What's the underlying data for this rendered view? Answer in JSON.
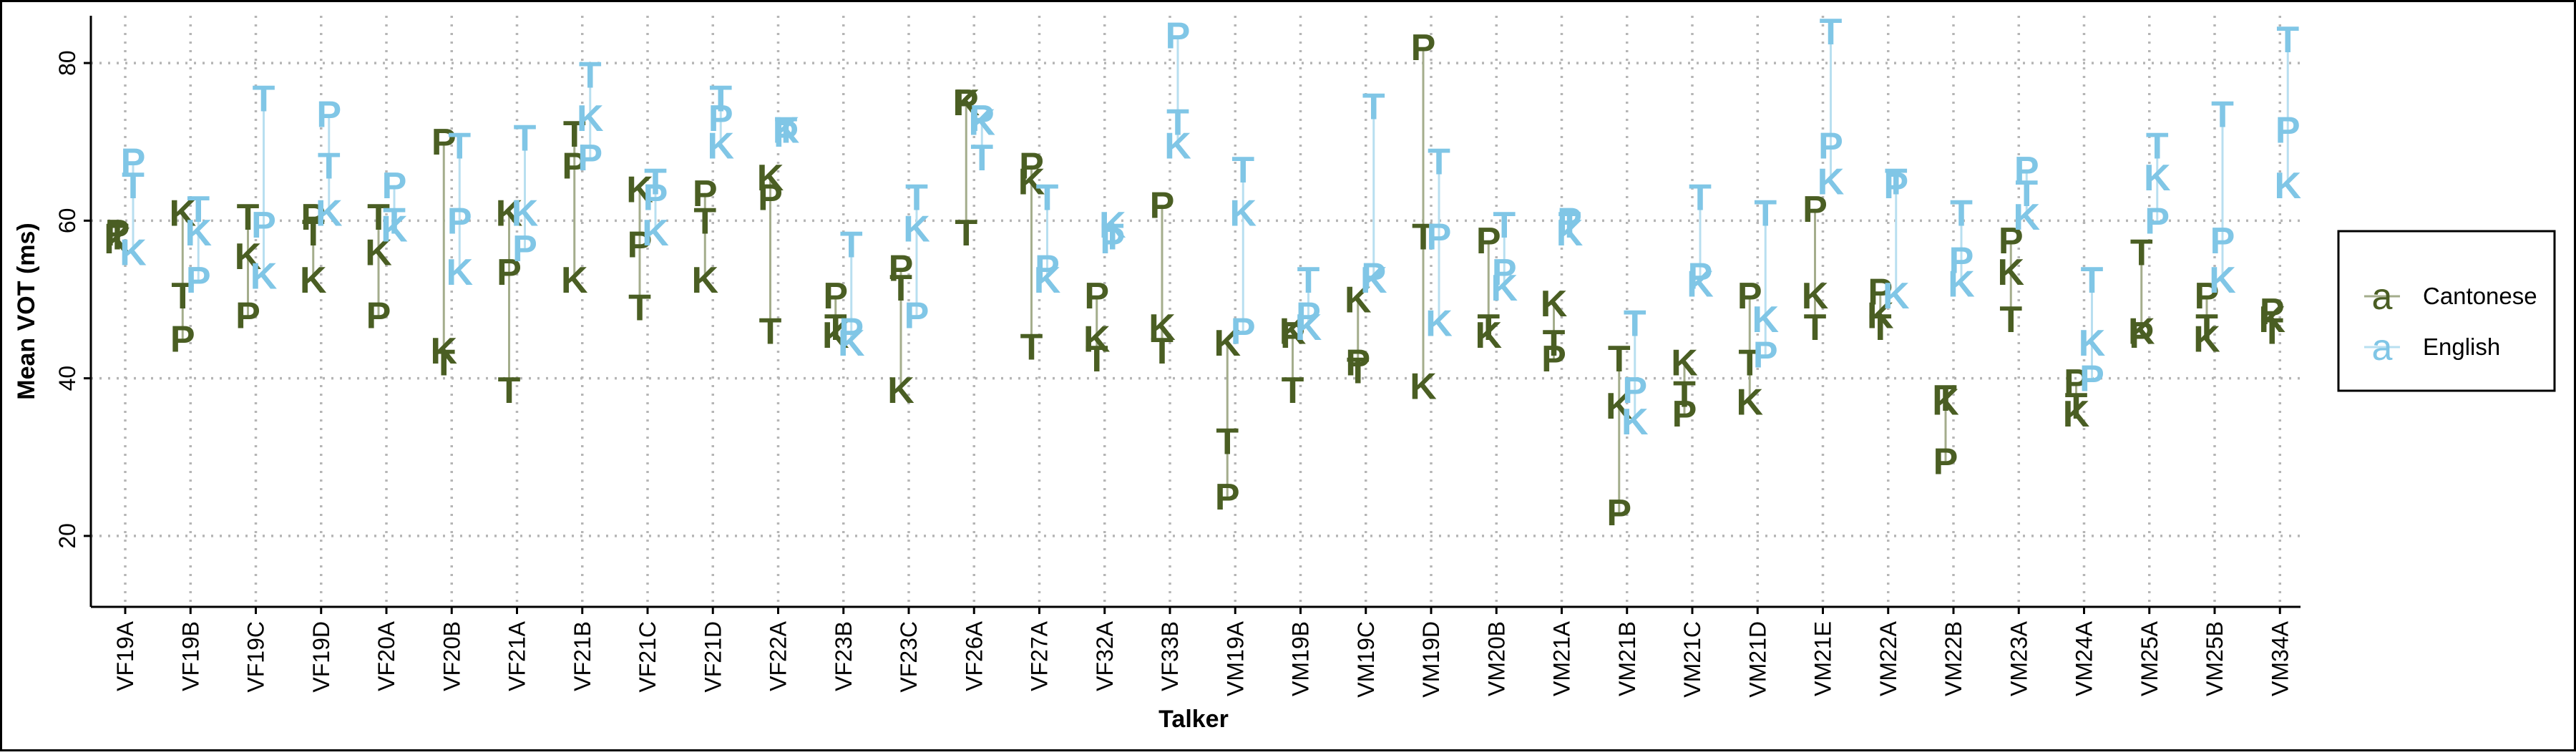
{
  "chart_data": {
    "type": "scatter",
    "xlabel": "Talker",
    "ylabel": "Mean VOT (ms)",
    "ylim": [
      11,
      86
    ],
    "yticks": [
      20,
      40,
      60,
      80
    ],
    "grid": true,
    "legend_position": "right",
    "legend_key_glyph": "a",
    "categories": [
      "VF19A",
      "VF19B",
      "VF19C",
      "VF19D",
      "VF20A",
      "VF20B",
      "VF21A",
      "VF21B",
      "VF21C",
      "VF21D",
      "VF22A",
      "VF23B",
      "VF23C",
      "VF26A",
      "VF27A",
      "VF32A",
      "VF33B",
      "VM19A",
      "VM19B",
      "VM19C",
      "VM19D",
      "VM20B",
      "VM21A",
      "VM21B",
      "VM21C",
      "VM21D",
      "VM21E",
      "VM22A",
      "VM22B",
      "VM23A",
      "VM24A",
      "VM25A",
      "VM25B",
      "VM34A"
    ],
    "series": [
      {
        "name": "Cantonese",
        "color": "#4a5e23",
        "line_color": "#a4ad8c",
        "points": [
          {
            "P": 58.5,
            "T": 58,
            "K": 57.5
          },
          {
            "P": 45,
            "T": 50.5,
            "K": 61
          },
          {
            "P": 48,
            "T": 60.5,
            "K": 55.5
          },
          {
            "P": 60.5,
            "T": 58.5,
            "K": 52.5
          },
          {
            "P": 48,
            "T": 60.5,
            "K": 56
          },
          {
            "P": 70,
            "T": 42,
            "K": 43.5
          },
          {
            "P": 53.5,
            "T": 38.5,
            "K": 61
          },
          {
            "P": 67,
            "T": 71,
            "K": 52.5
          },
          {
            "P": 57,
            "T": 49,
            "K": 64
          },
          {
            "P": 63.5,
            "T": 60,
            "K": 52.5
          },
          {
            "P": 63,
            "T": 46,
            "K": 65.5
          },
          {
            "P": 50.5,
            "T": 46.5,
            "K": 45.5
          },
          {
            "P": 54,
            "T": 51.5,
            "K": 38.5
          },
          {
            "P": 75,
            "T": 58.5,
            "K": 75
          },
          {
            "P": 67,
            "T": 44,
            "K": 65
          },
          {
            "P": 50.5,
            "T": 42.5,
            "K": 45
          },
          {
            "P": 62,
            "T": 43.5,
            "K": 46.5
          },
          {
            "P": 25,
            "T": 32,
            "K": 44.5
          },
          {
            "P": 45.5,
            "T": 38.5,
            "K": 46
          },
          {
            "P": 42,
            "T": 41,
            "K": 50
          },
          {
            "P": 82,
            "T": 58,
            "K": 39
          },
          {
            "P": 57.5,
            "T": 46.5,
            "K": 45.5
          },
          {
            "P": 42.5,
            "T": 44.5,
            "K": 49.5
          },
          {
            "P": 23,
            "T": 42.5,
            "K": 36.5
          },
          {
            "P": 35.5,
            "T": 38,
            "K": 42
          },
          {
            "P": 50.5,
            "T": 42,
            "K": 37
          },
          {
            "P": 61.5,
            "T": 46.5,
            "K": 50.5
          },
          {
            "P": 51,
            "T": 46.5,
            "K": 48
          },
          {
            "P": 29.5,
            "T": 37.5,
            "K": 37
          },
          {
            "P": 57.5,
            "T": 47.5,
            "K": 53.5
          },
          {
            "P": 39.5,
            "T": 36.5,
            "K": 35.5
          },
          {
            "P": 45.5,
            "T": 56,
            "K": 46
          },
          {
            "P": 50.5,
            "T": 46.5,
            "K": 45
          },
          {
            "P": 48.5,
            "T": 46,
            "K": 47.5
          }
        ]
      },
      {
        "name": "English",
        "color": "#80c6e6",
        "line_color": "#b8dff0",
        "points": [
          {
            "P": 67.5,
            "T": 64.5,
            "K": 56
          },
          {
            "P": 52.5,
            "T": 61.5,
            "K": 58.5
          },
          {
            "P": 59.5,
            "T": 75.5,
            "K": 53
          },
          {
            "P": 73.5,
            "T": 67,
            "K": 61
          },
          {
            "P": 64.5,
            "T": 60,
            "K": 59
          },
          {
            "P": 60,
            "T": 69.5,
            "K": 53.5
          },
          {
            "P": 56.5,
            "T": 70.5,
            "K": 61
          },
          {
            "P": 68,
            "T": 78.5,
            "K": 73
          },
          {
            "P": 63,
            "T": 65,
            "K": 58.5
          },
          {
            "P": 73,
            "T": 75.5,
            "K": 69.5
          },
          {
            "P": 71,
            "T": 71.5,
            "K": 71.5
          },
          {
            "P": 46,
            "T": 57,
            "K": 44.5
          },
          {
            "P": 48,
            "T": 63,
            "K": 59
          },
          {
            "P": 73,
            "T": 68,
            "K": 72.5
          },
          {
            "P": 54,
            "T": 63,
            "K": 52.5
          },
          {
            "P": 57.5,
            "T": 58,
            "K": 59.5
          },
          {
            "P": 83.5,
            "T": 72.5,
            "K": 69.5
          },
          {
            "P": 46,
            "T": 66.5,
            "K": 61
          },
          {
            "P": 48,
            "T": 52.5,
            "K": 46.5
          },
          {
            "P": 53,
            "T": 74.5,
            "K": 52.5
          },
          {
            "P": 58,
            "T": 67.5,
            "K": 47
          },
          {
            "P": 53.5,
            "T": 59.5,
            "K": 51.5
          },
          {
            "P": 60,
            "T": 59.5,
            "K": 58.5
          },
          {
            "P": 38.5,
            "T": 47,
            "K": 34.5
          },
          {
            "P": 53,
            "T": 63,
            "K": 52
          },
          {
            "P": 43,
            "T": 61,
            "K": 47.5
          },
          {
            "P": 69.5,
            "T": 84,
            "K": 65
          },
          {
            "P": 64.5,
            "T": 65,
            "K": 50.5
          },
          {
            "P": 55,
            "T": 61,
            "K": 52
          },
          {
            "P": 66.5,
            "T": 63.5,
            "K": 60.5
          },
          {
            "P": 40,
            "T": 52.5,
            "K": 44.5
          },
          {
            "P": 60,
            "T": 69.5,
            "K": 65.5
          },
          {
            "P": 57.5,
            "T": 73.5,
            "K": 52.5
          },
          {
            "P": 71.5,
            "T": 83,
            "K": 64.5
          }
        ]
      }
    ]
  }
}
